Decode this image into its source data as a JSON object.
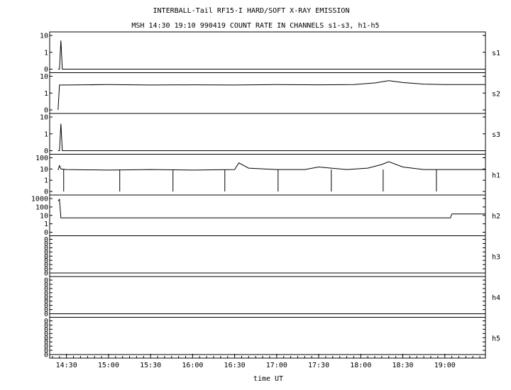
{
  "header": {
    "title_line1": "INTERBALL-Tail RF15-I HARD/SOFT X-RAY EMISSION",
    "title_line2": "MSH 14:30 19:10 990419  COUNT RATE IN CHANNELS s1-s3, h1-h5"
  },
  "chart_data": {
    "type": "line",
    "title": "INTERBALL-Tail RF15-I HARD/SOFT X-RAY EMISSION",
    "subtitle": "MSH 14:30 19:10 990419  COUNT RATE IN CHANNELS s1-s3, h1-h5",
    "xlabel": "time UT",
    "x_ticks": [
      "14:30",
      "15:00",
      "15:30",
      "16:00",
      "16:30",
      "17:00",
      "17:30",
      "18:00",
      "18:30",
      "19:00"
    ],
    "xlim": [
      "14:18",
      "19:29"
    ],
    "y_scale": "log",
    "grid": false,
    "panels": [
      {
        "name": "s1",
        "tick_labels": [
          "10",
          "1",
          "0"
        ],
        "x": [
          "14:24",
          "14:25",
          "14:26",
          "14:27",
          "19:29"
        ],
        "values": [
          0,
          0,
          5,
          0,
          0
        ]
      },
      {
        "name": "s2",
        "tick_labels": [
          "10",
          "1",
          "0"
        ],
        "x": [
          "14:24",
          "14:25",
          "14:30",
          "15:00",
          "15:30",
          "16:00",
          "16:30",
          "17:00",
          "17:30",
          "17:55",
          "18:10",
          "18:20",
          "18:30",
          "18:45",
          "19:00",
          "19:29"
        ],
        "values": [
          0,
          3,
          3,
          3.2,
          3,
          3.1,
          3,
          3.2,
          3.1,
          3.2,
          4,
          5.5,
          4.2,
          3.4,
          3.2,
          3.2
        ]
      },
      {
        "name": "s3",
        "tick_labels": [
          "10",
          "1",
          "0"
        ],
        "x": [
          "14:24",
          "14:25",
          "14:26",
          "14:27",
          "19:29"
        ],
        "values": [
          0,
          0,
          4,
          0,
          0
        ]
      },
      {
        "name": "h1",
        "tick_labels": [
          "100",
          "10",
          "1",
          "0"
        ],
        "x": [
          "14:24",
          "14:25",
          "14:26",
          "14:30",
          "15:00",
          "15:30",
          "16:00",
          "16:30",
          "16:33",
          "16:40",
          "17:00",
          "17:20",
          "17:30",
          "17:50",
          "18:05",
          "18:15",
          "18:20",
          "18:30",
          "18:45",
          "19:00",
          "19:29"
        ],
        "values": [
          8,
          20,
          10,
          9,
          8,
          9,
          8,
          9,
          35,
          12,
          9,
          9,
          15,
          9,
          12,
          25,
          45,
          15,
          9,
          9,
          9
        ],
        "dropouts": [
          "14:28",
          "15:08",
          "15:46",
          "16:23",
          "17:01",
          "17:39",
          "18:16",
          "18:54"
        ]
      },
      {
        "name": "h2",
        "tick_labels": [
          "1000",
          "100",
          "10",
          "1",
          "0"
        ],
        "x": [
          "14:24",
          "14:25",
          "14:26",
          "14:27",
          "19:04",
          "19:05",
          "19:29"
        ],
        "values": [
          500,
          800,
          5,
          5,
          5,
          15,
          15
        ]
      },
      {
        "name": "h3",
        "tick_labels": [
          "0",
          "0",
          "0",
          "0",
          "0",
          "0",
          "0",
          "0",
          "0"
        ],
        "x": [
          "14:18",
          "19:29"
        ],
        "values": [
          0,
          0
        ]
      },
      {
        "name": "h4",
        "tick_labels": [
          "0",
          "0",
          "0",
          "0",
          "0",
          "0",
          "0",
          "0",
          "0"
        ],
        "x": [
          "14:18",
          "19:29"
        ],
        "values": [
          0,
          0
        ]
      },
      {
        "name": "h5",
        "tick_labels": [
          "0",
          "0",
          "0",
          "0",
          "0",
          "0",
          "0",
          "0",
          "0"
        ],
        "x": [
          "14:18",
          "19:29"
        ],
        "values": [
          0,
          0
        ]
      }
    ]
  }
}
